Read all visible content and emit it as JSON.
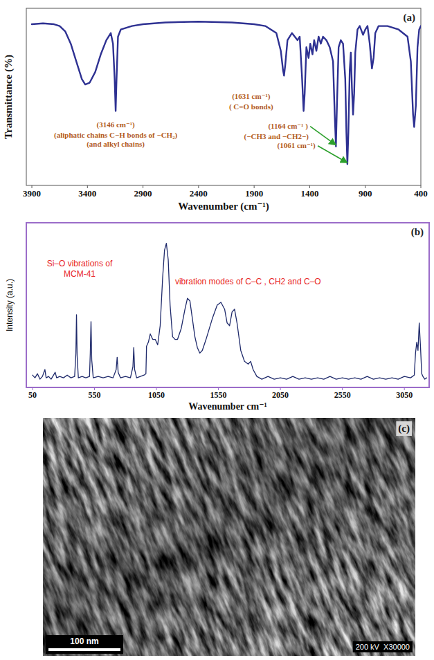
{
  "chart_data": [
    {
      "type": "line",
      "label": "(a)",
      "x_label": "Wavenumber (cm⁻¹)",
      "y_label": "Transmittance (%)",
      "xlim": [
        3950,
        400
      ],
      "xticks": [
        3900,
        3400,
        2900,
        2400,
        1900,
        1400,
        900,
        400
      ],
      "ylim": [
        0,
        100
      ],
      "tick_labels": "x",
      "grid": false,
      "color": "#2e3192",
      "x": [
        3900,
        3800,
        3700,
        3650,
        3600,
        3550,
        3500,
        3450,
        3420,
        3380,
        3330,
        3280,
        3230,
        3190,
        3170,
        3155,
        3146,
        3138,
        3125,
        3100,
        3000,
        2900,
        2700,
        2400,
        2100,
        1900,
        1800,
        1700,
        1660,
        1640,
        1631,
        1620,
        1600,
        1560,
        1510,
        1490,
        1470,
        1455,
        1445,
        1430,
        1410,
        1395,
        1375,
        1360,
        1340,
        1320,
        1300,
        1280,
        1250,
        1220,
        1190,
        1175,
        1164,
        1155,
        1140,
        1120,
        1100,
        1080,
        1070,
        1061,
        1052,
        1040,
        1030,
        1020,
        1010,
        1000,
        990,
        970,
        950,
        920,
        900,
        880,
        860,
        840,
        825,
        810,
        780,
        700,
        600,
        520,
        490,
        470,
        460,
        445,
        430,
        415,
        400
      ],
      "values": [
        91,
        91.5,
        91,
        90,
        87,
        80,
        70,
        60,
        57,
        58,
        64,
        74,
        82,
        86,
        80,
        60,
        42,
        60,
        84,
        88,
        90,
        91,
        92,
        92.5,
        92,
        91,
        90,
        86,
        76,
        65,
        62,
        68,
        82,
        86,
        82,
        84,
        62,
        42,
        52,
        78,
        72,
        80,
        74,
        82,
        76,
        84,
        80,
        84,
        82,
        78,
        70,
        40,
        22,
        45,
        78,
        82,
        80,
        60,
        30,
        12,
        30,
        65,
        75,
        55,
        40,
        52,
        75,
        88,
        90,
        85,
        88,
        90,
        80,
        66,
        72,
        86,
        90,
        90,
        88,
        84,
        70,
        40,
        33,
        45,
        78,
        88,
        90
      ],
      "annotations": [
        {
          "text": "(3146 cm⁻¹)",
          "x": 3146,
          "y": 33
        },
        {
          "text": "(aliphatic chains C−H bonds of −CH₂)",
          "x": 3146,
          "y": 27
        },
        {
          "text": "(and alkyl chains)",
          "x": 3146,
          "y": 22
        },
        {
          "text": "(1631 cm⁻¹)",
          "x": 1927,
          "y": 49
        },
        {
          "text": "( C=O bonds)",
          "x": 1927,
          "y": 43
        },
        {
          "text": "(1164 cm⁻¹ )",
          "x": 1595,
          "y": 32,
          "arrow_x": 1164
        },
        {
          "text": "(−CH3 and −CH2−)",
          "x": 1700,
          "y": 26
        },
        {
          "text": "(1061 cm⁻¹)",
          "x": 1520,
          "y": 21,
          "arrow_x": 1061
        }
      ]
    },
    {
      "type": "line",
      "label": "(b)",
      "x_label": "Wavenumber cm⁻¹",
      "y_label": "Intensity (a.u.)",
      "xlim": [
        0,
        3250
      ],
      "xticks": [
        50,
        550,
        1050,
        1550,
        2050,
        2550,
        3050
      ],
      "ylim": [
        -5,
        115
      ],
      "tick_labels": "x",
      "grid": false,
      "color": "#1f2a6b",
      "x": [
        50,
        70,
        90,
        110,
        130,
        150,
        160,
        180,
        200,
        220,
        233,
        245,
        270,
        300,
        330,
        360,
        390,
        400,
        405,
        410,
        420,
        450,
        480,
        510,
        516,
        522,
        528,
        540,
        580,
        620,
        660,
        700,
        725,
        733,
        741,
        760,
        800,
        840,
        860,
        867,
        874,
        890,
        920,
        950,
        965,
        970,
        985,
        1000,
        1020,
        1040,
        1060,
        1080,
        1100,
        1115,
        1130,
        1145,
        1160,
        1180,
        1200,
        1220,
        1250,
        1280,
        1300,
        1320,
        1340,
        1360,
        1380,
        1400,
        1420,
        1450,
        1500,
        1540,
        1570,
        1600,
        1620,
        1640,
        1660,
        1680,
        1700,
        1730,
        1760,
        1790,
        1810,
        1830,
        1860,
        1900,
        1950,
        2000,
        2050,
        2100,
        2150,
        2200,
        2250,
        2300,
        2350,
        2400,
        2450,
        2500,
        2550,
        2600,
        2650,
        2700,
        2750,
        2800,
        2850,
        2900,
        2950,
        3000,
        3050,
        3100,
        3130,
        3140,
        3150,
        3160,
        3170,
        3180,
        3190,
        3200,
        3215,
        3230
      ],
      "values": [
        4,
        2,
        5,
        1,
        3,
        8,
        2,
        3,
        1,
        4,
        6,
        2,
        3,
        2,
        4,
        2,
        3,
        20,
        48,
        18,
        2,
        3,
        2,
        3,
        20,
        43,
        15,
        2,
        3,
        2,
        3,
        2,
        8,
        17,
        6,
        2,
        3,
        2,
        10,
        24,
        8,
        2,
        3,
        4,
        5,
        25,
        28,
        34,
        30,
        30,
        26,
        40,
        75,
        95,
        100,
        88,
        55,
        32,
        30,
        30,
        38,
        52,
        60,
        58,
        45,
        32,
        24,
        20,
        22,
        30,
        45,
        55,
        57,
        52,
        42,
        40,
        50,
        52,
        42,
        22,
        14,
        12,
        14,
        8,
        3,
        1,
        3,
        1,
        2,
        1,
        3,
        1,
        2,
        1,
        2,
        1,
        3,
        1,
        2,
        1,
        2,
        1,
        3,
        1,
        2,
        1,
        2,
        1,
        3,
        2,
        4,
        20,
        28,
        22,
        42,
        25,
        5,
        3,
        1,
        2
      ],
      "annotations": [
        {
          "lines": [
            "Si–O vibrations  of",
            "MCM-41"
          ],
          "x": 430,
          "y": 83
        },
        {
          "text": "vibration modes of C–C , CH2 and C–O",
          "x": 1200,
          "y": 70
        }
      ]
    }
  ],
  "image_panel": {
    "label": "(c)",
    "scale_bar": "100 nm",
    "caption": "200 kV  X30000"
  }
}
